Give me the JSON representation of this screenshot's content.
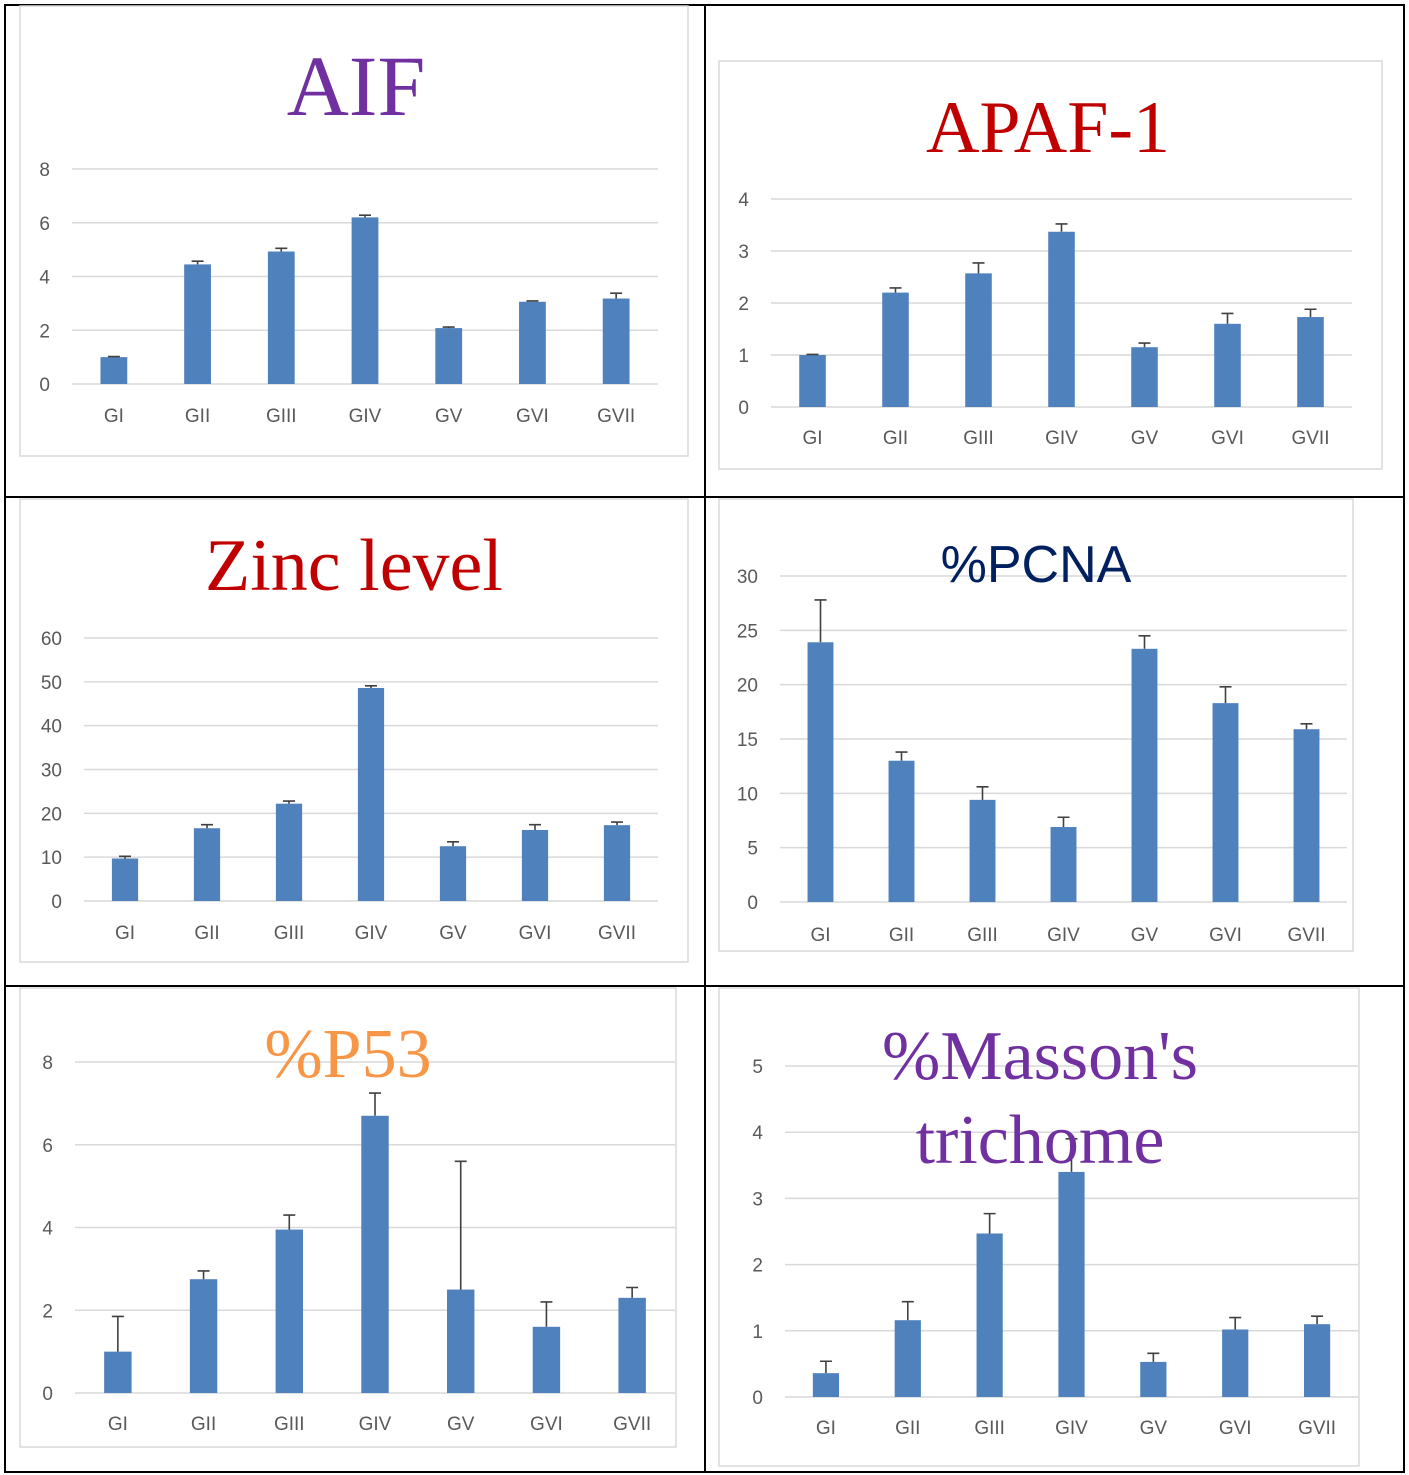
{
  "chart_data": [
    {
      "type": "bar",
      "title": "AIF",
      "title_color": "#7030a0",
      "bar_color": "#4f81bd",
      "categories": [
        "GI",
        "GII",
        "GIII",
        "GIV",
        "GV",
        "GVI",
        "GVII"
      ],
      "values": [
        1.0,
        4.45,
        4.93,
        6.2,
        2.08,
        3.06,
        3.18
      ],
      "errors": [
        0.02,
        0.12,
        0.12,
        0.08,
        0.04,
        0.03,
        0.2
      ],
      "ylim": [
        0,
        8
      ],
      "yticks": [
        0,
        2,
        4,
        6,
        8
      ],
      "grid": true,
      "legend": "none"
    },
    {
      "type": "bar",
      "title": "APAF-1",
      "title_color": "#c00000",
      "bar_color": "#4f81bd",
      "categories": [
        "GI",
        "GII",
        "GIII",
        "GIV",
        "GV",
        "GVI",
        "GVII"
      ],
      "values": [
        1.0,
        2.2,
        2.57,
        3.37,
        1.15,
        1.6,
        1.73
      ],
      "errors": [
        0.01,
        0.09,
        0.2,
        0.15,
        0.08,
        0.2,
        0.15
      ],
      "ylim": [
        0,
        4
      ],
      "yticks": [
        0,
        1,
        2,
        3,
        4
      ],
      "grid": true,
      "legend": "none"
    },
    {
      "type": "bar",
      "title": "Zinc level",
      "title_color": "#c00000",
      "bar_color": "#4f81bd",
      "categories": [
        "GI",
        "GII",
        "GIII",
        "GIV",
        "GV",
        "GVI",
        "GVII"
      ],
      "values": [
        9.7,
        16.6,
        22.2,
        48.6,
        12.5,
        16.2,
        17.3
      ],
      "errors": [
        0.5,
        0.8,
        0.6,
        0.5,
        1.0,
        1.2,
        0.7
      ],
      "ylim": [
        0,
        60
      ],
      "yticks": [
        0,
        10,
        20,
        30,
        40,
        50,
        60
      ],
      "grid": true,
      "legend": "none"
    },
    {
      "type": "bar",
      "title": "%PCNA",
      "title_color": "#002060",
      "bar_color": "#4f81bd",
      "categories": [
        "GI",
        "GII",
        "GIII",
        "GIV",
        "GV",
        "GVI",
        "GVII"
      ],
      "values": [
        23.9,
        13.0,
        9.4,
        6.9,
        23.3,
        18.3,
        15.9
      ],
      "errors": [
        3.9,
        0.8,
        1.2,
        0.9,
        1.2,
        1.5,
        0.5
      ],
      "ylim": [
        0,
        30
      ],
      "yticks": [
        0,
        5,
        10,
        15,
        20,
        25,
        30
      ],
      "grid": true,
      "legend": "none"
    },
    {
      "type": "bar",
      "title": "%P53",
      "title_color": "#f79646",
      "bar_color": "#4f81bd",
      "categories": [
        "GI",
        "GII",
        "GIII",
        "GIV",
        "GV",
        "GVI",
        "GVII"
      ],
      "values": [
        1.0,
        2.75,
        3.95,
        6.7,
        2.5,
        1.6,
        2.3
      ],
      "errors": [
        0.85,
        0.2,
        0.35,
        0.55,
        3.1,
        0.6,
        0.25
      ],
      "ylim": [
        0,
        8
      ],
      "yticks": [
        0,
        2,
        4,
        6,
        8
      ],
      "grid": true,
      "legend": "none"
    },
    {
      "type": "bar",
      "title": "%Masson's trichome",
      "title_lines": [
        "%Masson's",
        "trichome"
      ],
      "title_color": "#7030a0",
      "bar_color": "#4f81bd",
      "categories": [
        "GI",
        "GII",
        "GIII",
        "GIV",
        "GV",
        "GVI",
        "GVII"
      ],
      "values": [
        0.36,
        1.16,
        2.47,
        3.4,
        0.53,
        1.02,
        1.1
      ],
      "errors": [
        0.18,
        0.28,
        0.3,
        0.5,
        0.13,
        0.18,
        0.12
      ],
      "ylim": [
        0,
        5
      ],
      "yticks": [
        0,
        1,
        2,
        3,
        4,
        5
      ],
      "grid": true,
      "legend": "none"
    }
  ]
}
